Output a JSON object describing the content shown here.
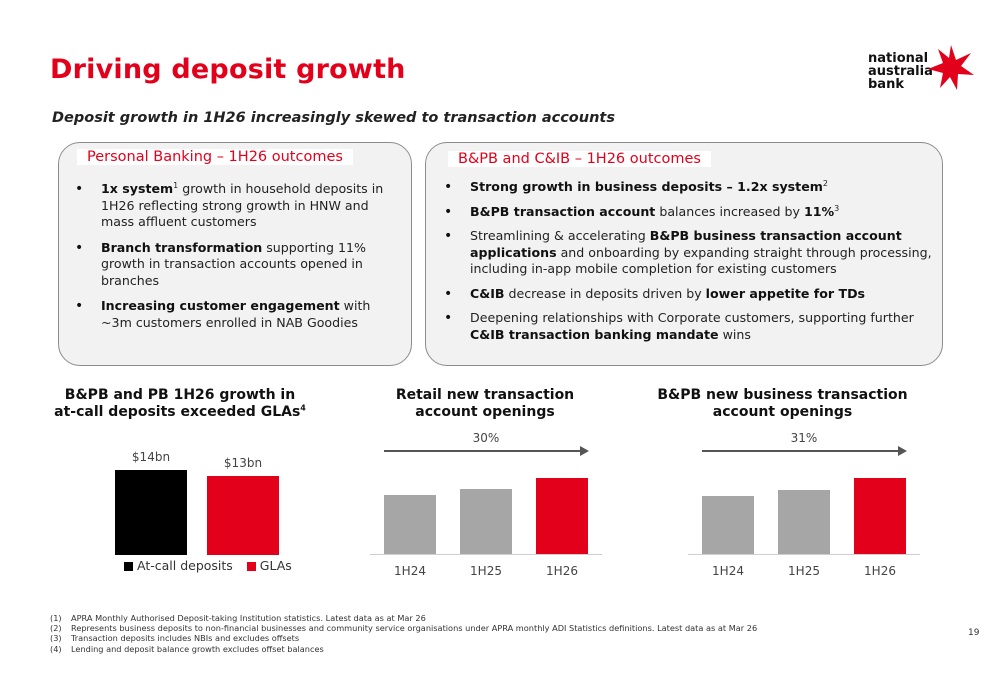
{
  "title": "Driving deposit growth",
  "subtitle": "Deposit growth in 1H26 increasingly skewed to transaction accounts",
  "logo": {
    "line1": "national",
    "line2": "australia",
    "line3": "bank",
    "star_color": "#e3001b"
  },
  "accent_color": "#e3001b",
  "panel_left": {
    "heading": "Personal Banking – 1H26 outcomes",
    "b1_bold": "1x system",
    "b1_sup": "1",
    "b1_rest": " growth in household deposits in 1H26 reflecting strong growth in HNW and mass affluent customers",
    "b2_bold": "Branch transformation",
    "b2_rest": " supporting 11% growth in transaction accounts opened in branches",
    "b3_bold": "Increasing customer engagement",
    "b3_rest": " with ~3m customers enrolled in NAB Goodies"
  },
  "panel_right": {
    "heading": "B&PB and C&IB – 1H26 outcomes",
    "b1_bold": "Strong growth in business deposits – 1.2x system",
    "b1_sup": "2",
    "b2_bold": "B&PB transaction account",
    "b2_mid": " balances increased by ",
    "b2_bold2": "11%",
    "b2_sup": "3",
    "b3_pre": "Streamlining & accelerating ",
    "b3_bold": "B&PB business transaction account applications",
    "b3_rest": " and onboarding by expanding straight through processing, including in-app mobile completion for existing customers",
    "b4_bold": "C&IB",
    "b4_mid": " decrease in deposits driven by ",
    "b4_bold2": "lower appetite for TDs",
    "b5_pre": "Deepening relationships with Corporate customers, supporting further ",
    "b5_bold": "C&IB transaction banking mandate",
    "b5_rest": " wins"
  },
  "chart_data": [
    {
      "type": "bar",
      "title_line1": "B&PB and PB 1H26 growth in",
      "title_line2": "at-call deposits exceeded GLAs",
      "title_sup": "4",
      "categories": [
        "At-call deposits",
        "GLAs"
      ],
      "values": [
        14,
        13
      ],
      "value_labels": [
        "$14bn",
        "$13bn"
      ],
      "colors": [
        "#000000",
        "#e3001b"
      ],
      "legend": [
        "At-call deposits",
        "GLAs"
      ],
      "legend_placement": "bottom"
    },
    {
      "type": "bar",
      "title_line1": "Retail new transaction",
      "title_line2": "account openings",
      "categories": [
        "1H24",
        "1H25",
        "1H26"
      ],
      "values": [
        77,
        86,
        100
      ],
      "colors": [
        "#a6a6a6",
        "#a6a6a6",
        "#e3001b"
      ],
      "annotation": "30%"
    },
    {
      "type": "bar",
      "title_line1": "B&PB new business transaction",
      "title_line2": "account openings",
      "categories": [
        "1H24",
        "1H25",
        "1H26"
      ],
      "values": [
        76,
        84,
        100
      ],
      "colors": [
        "#a6a6a6",
        "#a6a6a6",
        "#e3001b"
      ],
      "annotation": "31%"
    }
  ],
  "footnotes": [
    {
      "n": "(1)",
      "text": "APRA Monthly Authorised Deposit-taking Institution statistics. Latest data as at Mar 26"
    },
    {
      "n": "(2)",
      "text": "Represents business deposits to non-financial businesses and community service organisations under APRA monthly ADI Statistics definitions. Latest data as at Mar 26"
    },
    {
      "n": "(3)",
      "text": "Transaction deposits includes NBIs and excludes offsets"
    },
    {
      "n": "(4)",
      "text": "Lending and deposit balance growth excludes offset balances"
    }
  ],
  "page_number": "19"
}
